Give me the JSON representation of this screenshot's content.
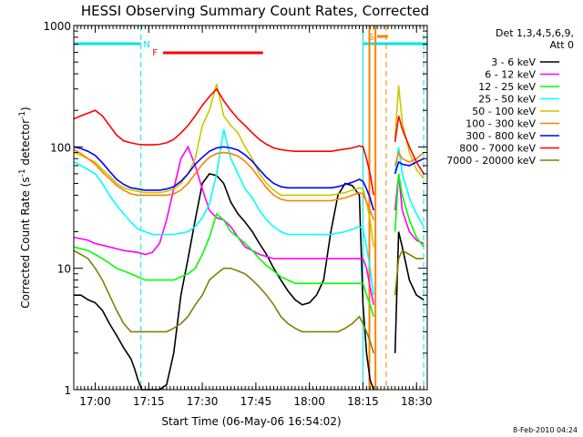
{
  "chart_data": {
    "type": "line",
    "title": "HESSI Observing Summary Count Rates, Corrected",
    "xlabel": "Start Time (06-May-06 16:54:02)",
    "ylabel": "Corrected Count Rate (s⁻¹ detector⁻¹)",
    "ylabel_main": "Corrected Count Rate (s",
    "ylabel_sup1": "-1",
    "ylabel_mid": " detector",
    "ylabel_sup2": "-1",
    "ylabel_end": ")",
    "x_scale": "time (minutes since 16:54:02)",
    "y_scale": "log",
    "xlim": [
      0,
      99
    ],
    "ylim": [
      1,
      1000
    ],
    "x_ticks": [
      {
        "label": "17:00",
        "value": 6
      },
      {
        "label": "17:15",
        "value": 21
      },
      {
        "label": "17:30",
        "value": 36
      },
      {
        "label": "17:45",
        "value": 51
      },
      {
        "label": "18:00",
        "value": 66
      },
      {
        "label": "18:15",
        "value": 81
      },
      {
        "label": "18:30",
        "value": 96
      }
    ],
    "y_ticks": [
      {
        "label": "1",
        "value": 1
      },
      {
        "label": "10",
        "value": 10
      },
      {
        "label": "100",
        "value": 100
      },
      {
        "label": "1000",
        "value": 1000
      }
    ],
    "legend_title": [
      "Det 1,3,4,5,6,9,",
      "Att 0"
    ],
    "legend_placement": "right, outside plot",
    "footer_date": "8-Feb-2010 04:24",
    "markers": {
      "N": "N",
      "F": "F",
      "S": "S",
      "night_bars": [
        [
          0,
          18.8
        ],
        [
          81,
          99
        ]
      ],
      "flare_bar": [
        25,
        53
      ],
      "saa_bar": [
        85,
        88
      ],
      "dashed_lines": [
        18.8,
        81,
        87.5,
        98
      ],
      "solid_lines": [
        0,
        81
      ]
    },
    "series": [
      {
        "name": "3 - 6 keV",
        "color": "#000000",
        "gaps": [
          [
            84.5,
            90
          ]
        ],
        "x": [
          0,
          2,
          4,
          6,
          8,
          10,
          12,
          14,
          16,
          17,
          18,
          19,
          20,
          22,
          24,
          26,
          28,
          30,
          32,
          34,
          36,
          38,
          40,
          42,
          44,
          46,
          48,
          50,
          52,
          54,
          56,
          58,
          60,
          62,
          64,
          66,
          68,
          70,
          72,
          74,
          76,
          78,
          80,
          81,
          82,
          83,
          84,
          90,
          91,
          92,
          94,
          96,
          98
        ],
        "y": [
          6,
          6,
          5.5,
          5.2,
          4.5,
          3.5,
          2.8,
          2.2,
          1.8,
          1.5,
          1.2,
          1,
          1,
          1,
          1,
          1.1,
          2,
          6,
          12,
          25,
          50,
          60,
          58,
          50,
          35,
          28,
          24,
          20,
          16,
          13,
          10,
          8,
          6.5,
          5.5,
          5,
          5.2,
          6,
          8,
          20,
          40,
          50,
          48,
          40,
          5,
          2,
          1.2,
          1,
          2,
          20,
          15,
          8,
          6,
          5.5
        ]
      },
      {
        "name": "6 - 12 keV",
        "color": "#ff00ff",
        "gaps": [
          [
            84.5,
            90
          ]
        ],
        "x": [
          0,
          4,
          6,
          10,
          14,
          18,
          20,
          22,
          24,
          26,
          28,
          30,
          32,
          34,
          36,
          38,
          40,
          42,
          44,
          46,
          48,
          50,
          52,
          54,
          56,
          58,
          60,
          62,
          64,
          66,
          68,
          70,
          72,
          74,
          76,
          78,
          80,
          81,
          82,
          83,
          84,
          90,
          91,
          92,
          94,
          96,
          98
        ],
        "y": [
          18,
          17,
          16,
          15,
          14,
          13.5,
          13,
          13.5,
          16,
          25,
          45,
          80,
          100,
          70,
          45,
          30,
          26,
          25,
          22,
          18,
          15,
          14,
          13,
          12.5,
          12,
          12,
          12,
          12,
          12,
          12,
          12,
          12,
          12,
          12,
          12,
          12,
          12,
          12,
          10,
          7,
          5,
          30,
          60,
          30,
          20,
          17,
          16
        ]
      },
      {
        "name": "12 - 25 keV",
        "color": "#00ff00",
        "gaps": [
          [
            84.5,
            90
          ]
        ],
        "x": [
          0,
          4,
          6,
          8,
          10,
          12,
          14,
          16,
          18,
          20,
          22,
          24,
          26,
          28,
          30,
          32,
          34,
          36,
          38,
          40,
          42,
          44,
          46,
          48,
          50,
          52,
          54,
          56,
          58,
          60,
          62,
          64,
          66,
          68,
          70,
          72,
          74,
          76,
          78,
          80,
          81,
          82,
          83,
          84,
          90,
          91,
          92,
          94,
          96,
          98
        ],
        "y": [
          15,
          14,
          13,
          12,
          11,
          10,
          9.5,
          9,
          8.5,
          8,
          8,
          8,
          8,
          8,
          8.5,
          9,
          10,
          13,
          18,
          28,
          25,
          20,
          18,
          16,
          14,
          12,
          10.5,
          9.5,
          8.5,
          8,
          7.5,
          7.5,
          7.5,
          7.5,
          7.5,
          7.5,
          7.5,
          7.5,
          7.5,
          7.5,
          7.5,
          6,
          5,
          4,
          20,
          60,
          40,
          25,
          18,
          15
        ]
      },
      {
        "name": "25 - 50 keV",
        "color": "#00ffff",
        "gaps": [
          [
            84.5,
            90
          ]
        ],
        "x": [
          0,
          2,
          4,
          6,
          8,
          10,
          12,
          14,
          16,
          18,
          20,
          22,
          24,
          26,
          28,
          30,
          32,
          34,
          36,
          38,
          40,
          42,
          44,
          46,
          48,
          50,
          52,
          54,
          56,
          58,
          60,
          62,
          64,
          66,
          68,
          70,
          72,
          74,
          76,
          78,
          80,
          81,
          82,
          83,
          84,
          90,
          91,
          92,
          94,
          96,
          98
        ],
        "y": [
          75,
          70,
          65,
          60,
          50,
          40,
          33,
          28,
          24,
          21,
          20,
          19,
          19,
          19,
          19,
          19.5,
          20,
          22,
          26,
          34,
          60,
          140,
          80,
          60,
          45,
          38,
          30,
          25,
          22,
          20,
          19,
          19,
          19,
          19,
          19,
          19,
          19,
          19.5,
          20,
          21,
          22,
          21,
          15,
          10,
          6,
          60,
          100,
          60,
          38,
          28,
          22
        ]
      },
      {
        "name": "50 - 100 keV",
        "color": "#c8c800",
        "gaps": [
          [
            84.5,
            90
          ]
        ],
        "x": [
          0,
          2,
          4,
          6,
          8,
          10,
          12,
          14,
          16,
          18,
          20,
          22,
          24,
          26,
          28,
          30,
          32,
          34,
          36,
          38,
          40,
          42,
          44,
          46,
          48,
          50,
          52,
          54,
          56,
          58,
          60,
          62,
          64,
          66,
          68,
          70,
          72,
          74,
          76,
          78,
          80,
          81,
          82,
          83,
          84,
          90,
          91,
          92,
          94,
          96,
          98
        ],
        "y": [
          90,
          85,
          80,
          75,
          65,
          58,
          50,
          46,
          44,
          43,
          42,
          42,
          42,
          43,
          45,
          50,
          60,
          80,
          150,
          200,
          330,
          180,
          150,
          130,
          100,
          80,
          60,
          50,
          44,
          40,
          40,
          40,
          40,
          40,
          40,
          40,
          40,
          41,
          42,
          44,
          46,
          45,
          35,
          25,
          15,
          120,
          320,
          160,
          90,
          65,
          55
        ]
      },
      {
        "name": "100 - 300 keV",
        "color": "#ff8000",
        "gaps": [
          [
            84.5,
            90
          ]
        ],
        "x": [
          0,
          2,
          4,
          6,
          8,
          10,
          12,
          14,
          16,
          18,
          20,
          22,
          24,
          26,
          28,
          30,
          32,
          34,
          36,
          38,
          40,
          42,
          44,
          46,
          48,
          50,
          52,
          54,
          56,
          58,
          60,
          62,
          64,
          66,
          68,
          70,
          72,
          74,
          76,
          78,
          80,
          81,
          82,
          83,
          84,
          90,
          91,
          92,
          94,
          96,
          98
        ],
        "y": [
          95,
          88,
          80,
          72,
          62,
          55,
          48,
          44,
          41,
          40,
          40,
          40,
          40,
          40,
          41,
          44,
          50,
          60,
          72,
          82,
          88,
          90,
          88,
          84,
          76,
          66,
          55,
          46,
          40,
          37,
          36,
          36,
          36,
          36,
          36,
          36,
          36,
          37,
          38,
          40,
          42,
          41,
          35,
          30,
          25,
          70,
          90,
          80,
          75,
          80,
          90
        ]
      },
      {
        "name": "300 - 800 keV",
        "color": "#0000ff",
        "gaps": [
          [
            84.5,
            90
          ]
        ],
        "x": [
          0,
          2,
          4,
          6,
          8,
          10,
          12,
          14,
          16,
          18,
          20,
          22,
          24,
          26,
          28,
          30,
          32,
          34,
          36,
          38,
          40,
          42,
          44,
          46,
          48,
          50,
          52,
          54,
          56,
          58,
          60,
          62,
          64,
          66,
          68,
          70,
          72,
          74,
          76,
          78,
          80,
          81,
          82,
          83,
          84,
          90,
          91,
          92,
          94,
          96,
          98
        ],
        "y": [
          100,
          97,
          92,
          85,
          74,
          63,
          54,
          49,
          46,
          45,
          44,
          44,
          44,
          45,
          47,
          52,
          60,
          72,
          82,
          92,
          98,
          100,
          98,
          94,
          86,
          76,
          65,
          56,
          50,
          47,
          46,
          46,
          46,
          46,
          46,
          46,
          46,
          47,
          49,
          51,
          54,
          52,
          45,
          38,
          30,
          60,
          75,
          72,
          70,
          75,
          80
        ]
      },
      {
        "name": "800 - 7000 keV",
        "color": "#ff0000",
        "gaps": [
          [
            84.5,
            90
          ]
        ],
        "x": [
          0,
          2,
          4,
          6,
          8,
          10,
          12,
          14,
          16,
          18,
          20,
          22,
          24,
          26,
          28,
          30,
          32,
          34,
          36,
          38,
          40,
          42,
          44,
          46,
          48,
          50,
          52,
          54,
          56,
          58,
          60,
          62,
          64,
          66,
          68,
          70,
          72,
          74,
          76,
          78,
          80,
          81,
          82,
          83,
          84,
          90,
          91,
          92,
          94,
          96,
          98
        ],
        "y": [
          170,
          180,
          190,
          200,
          180,
          150,
          125,
          112,
          108,
          105,
          104,
          104,
          105,
          108,
          115,
          130,
          150,
          180,
          220,
          260,
          300,
          240,
          200,
          170,
          150,
          130,
          115,
          105,
          98,
          95,
          93,
          92,
          92,
          92,
          92,
          92,
          92,
          94,
          96,
          98,
          102,
          100,
          80,
          60,
          40,
          110,
          180,
          140,
          100,
          75,
          60
        ]
      },
      {
        "name": "7000 - 20000 keV",
        "color": "#808000",
        "gaps": [
          [
            84.5,
            90
          ]
        ],
        "x": [
          0,
          2,
          4,
          6,
          8,
          10,
          12,
          14,
          16,
          18,
          20,
          22,
          24,
          26,
          28,
          30,
          32,
          34,
          36,
          38,
          40,
          42,
          44,
          46,
          48,
          50,
          52,
          54,
          56,
          58,
          60,
          62,
          64,
          66,
          68,
          70,
          72,
          74,
          76,
          78,
          80,
          81,
          82,
          83,
          84,
          90,
          91,
          92,
          94,
          96,
          98
        ],
        "y": [
          14,
          13,
          12,
          10,
          8,
          6,
          4.5,
          3.5,
          3,
          3,
          3,
          3,
          3,
          3,
          3.2,
          3.5,
          4,
          5,
          6,
          8,
          9,
          10,
          10,
          9.5,
          9,
          8,
          7,
          6,
          5,
          4,
          3.5,
          3.2,
          3,
          3,
          3,
          3,
          3,
          3,
          3.2,
          3.5,
          4,
          3.5,
          3,
          2.5,
          2,
          6,
          12,
          14,
          13,
          12,
          12
        ]
      }
    ]
  }
}
